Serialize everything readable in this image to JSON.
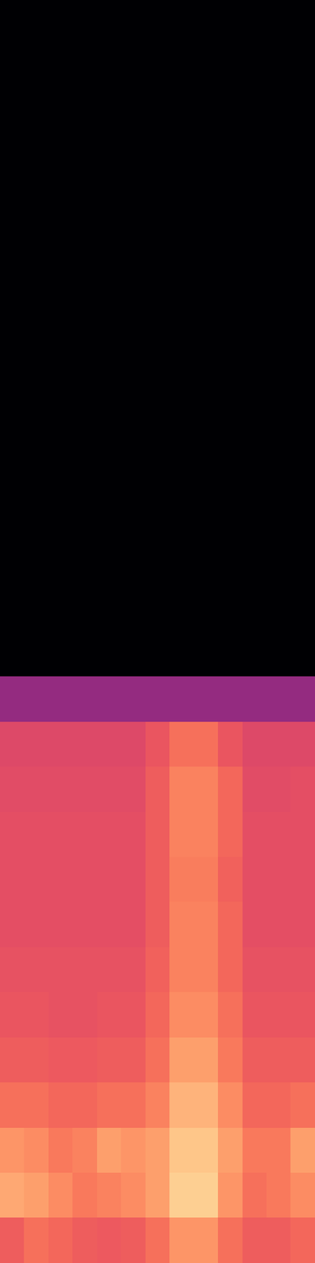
{
  "chart_data": {
    "type": "heatmap",
    "color": "magma",
    "tick_labels": false,
    "zlim": [
      0,
      1
    ],
    "values": [
      [
        0,
        0,
        0,
        0,
        0,
        0,
        0,
        0,
        0,
        0,
        0,
        0,
        0
      ],
      [
        0,
        0,
        0,
        0,
        0,
        0,
        0,
        0,
        0,
        0,
        0,
        0,
        0
      ],
      [
        0,
        0,
        0,
        0,
        0,
        0,
        0,
        0,
        0,
        0,
        0,
        0,
        0
      ],
      [
        0,
        0,
        0,
        0,
        0,
        0,
        0,
        0,
        0,
        0,
        0,
        0,
        0
      ],
      [
        0,
        0,
        0,
        0,
        0,
        0,
        0,
        0,
        0,
        0,
        0,
        0,
        0
      ],
      [
        0,
        0,
        0,
        0,
        0,
        0,
        0,
        0,
        0,
        0,
        0,
        0,
        0
      ],
      [
        0,
        0,
        0,
        0,
        0,
        0,
        0,
        0,
        0,
        0,
        0,
        0,
        0
      ],
      [
        0,
        0,
        0,
        0,
        0,
        0,
        0,
        0,
        0,
        0,
        0,
        0,
        0
      ],
      [
        0,
        0,
        0,
        0,
        0,
        0,
        0,
        0,
        0,
        0,
        0,
        0,
        0
      ],
      [
        0,
        0,
        0,
        0,
        0,
        0,
        0,
        0,
        0,
        0,
        0,
        0,
        0
      ],
      [
        0,
        0,
        0,
        0,
        0,
        0,
        0,
        0,
        0,
        0,
        0,
        0,
        0
      ],
      [
        0,
        0,
        0,
        0,
        0,
        0,
        0,
        0,
        0,
        0,
        0,
        0,
        0
      ],
      [
        0,
        0,
        0,
        0,
        0,
        0,
        0,
        0,
        0,
        0,
        0,
        0,
        0
      ],
      [
        0,
        0,
        0,
        0,
        0,
        0,
        0,
        0,
        0,
        0,
        0,
        0,
        0
      ],
      [
        0,
        0,
        0,
        0,
        0,
        0,
        0,
        0,
        0,
        0,
        0,
        0,
        0
      ],
      [
        0.42,
        0.42,
        0.42,
        0.42,
        0.42,
        0.42,
        0.42,
        0.42,
        0.42,
        0.42,
        0.42,
        0.42,
        0.42
      ],
      [
        0.6,
        0.6,
        0.6,
        0.6,
        0.6,
        0.6,
        0.64,
        0.7,
        0.7,
        0.64,
        0.6,
        0.6,
        0.6
      ],
      [
        0.61,
        0.61,
        0.61,
        0.61,
        0.61,
        0.61,
        0.66,
        0.74,
        0.74,
        0.68,
        0.61,
        0.61,
        0.62
      ],
      [
        0.62,
        0.62,
        0.62,
        0.62,
        0.62,
        0.62,
        0.66,
        0.74,
        0.74,
        0.68,
        0.62,
        0.62,
        0.62
      ],
      [
        0.62,
        0.62,
        0.62,
        0.62,
        0.62,
        0.62,
        0.66,
        0.73,
        0.73,
        0.67,
        0.62,
        0.62,
        0.62
      ],
      [
        0.62,
        0.62,
        0.62,
        0.62,
        0.62,
        0.62,
        0.66,
        0.74,
        0.74,
        0.68,
        0.62,
        0.62,
        0.62
      ],
      [
        0.63,
        0.63,
        0.63,
        0.63,
        0.63,
        0.63,
        0.67,
        0.74,
        0.74,
        0.68,
        0.63,
        0.63,
        0.63
      ],
      [
        0.64,
        0.64,
        0.63,
        0.63,
        0.64,
        0.64,
        0.68,
        0.76,
        0.76,
        0.7,
        0.64,
        0.64,
        0.64
      ],
      [
        0.66,
        0.66,
        0.65,
        0.65,
        0.66,
        0.66,
        0.7,
        0.8,
        0.8,
        0.72,
        0.66,
        0.66,
        0.66
      ],
      [
        0.7,
        0.7,
        0.68,
        0.68,
        0.7,
        0.7,
        0.74,
        0.84,
        0.84,
        0.76,
        0.68,
        0.68,
        0.7
      ],
      [
        0.78,
        0.76,
        0.72,
        0.74,
        0.8,
        0.78,
        0.8,
        0.88,
        0.88,
        0.8,
        0.72,
        0.72,
        0.8
      ],
      [
        0.82,
        0.8,
        0.76,
        0.72,
        0.74,
        0.76,
        0.8,
        0.9,
        0.9,
        0.78,
        0.7,
        0.72,
        0.76
      ],
      [
        0.66,
        0.7,
        0.68,
        0.66,
        0.65,
        0.66,
        0.7,
        0.78,
        0.78,
        0.7,
        0.66,
        0.66,
        0.68
      ]
    ]
  }
}
